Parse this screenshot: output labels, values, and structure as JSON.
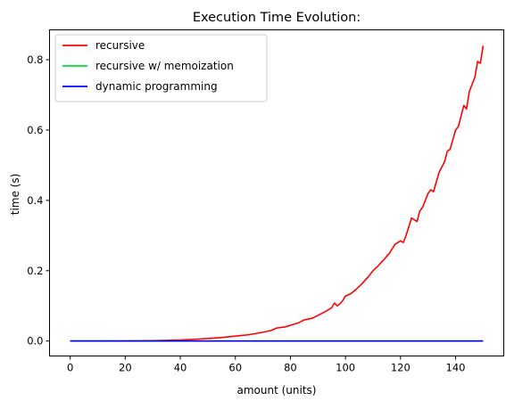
{
  "chart_data": {
    "type": "line",
    "title": "Execution Time Evolution:",
    "xlabel": "amount (units)",
    "ylabel": "time (s)",
    "xlim": [
      -7.5,
      157.5
    ],
    "ylim": [
      -0.0425,
      0.885
    ],
    "x_ticks": [
      0,
      20,
      40,
      60,
      80,
      100,
      120,
      140
    ],
    "x_tick_labels": [
      "0",
      "20",
      "40",
      "60",
      "80",
      "100",
      "120",
      "140"
    ],
    "y_ticks": [
      0.0,
      0.2,
      0.4,
      0.6,
      0.8
    ],
    "y_tick_labels": [
      "0.0",
      "0.2",
      "0.4",
      "0.6",
      "0.8"
    ],
    "grid": false,
    "legend_position": "top-left",
    "series": [
      {
        "name": "recursive",
        "color": "#ff0000",
        "x": [
          0,
          10,
          20,
          30,
          35,
          40,
          45,
          50,
          55,
          60,
          65,
          70,
          73,
          75,
          78,
          80,
          83,
          85,
          88,
          90,
          93,
          95,
          96,
          97,
          98,
          99,
          100,
          102,
          104,
          106,
          108,
          110,
          112,
          114,
          116,
          118,
          120,
          121,
          122,
          124,
          126,
          127,
          128,
          130,
          131,
          132,
          134,
          136,
          137,
          138,
          140,
          141,
          142,
          143,
          144,
          145,
          147,
          148,
          149,
          150
        ],
        "values": [
          0.0,
          0.0,
          0.0005,
          0.001,
          0.002,
          0.003,
          0.005,
          0.007,
          0.01,
          0.014,
          0.018,
          0.025,
          0.03,
          0.037,
          0.04,
          0.045,
          0.052,
          0.06,
          0.065,
          0.073,
          0.085,
          0.095,
          0.108,
          0.1,
          0.106,
          0.115,
          0.128,
          0.135,
          0.148,
          0.163,
          0.18,
          0.2,
          0.215,
          0.232,
          0.25,
          0.275,
          0.285,
          0.28,
          0.3,
          0.35,
          0.34,
          0.37,
          0.38,
          0.42,
          0.43,
          0.425,
          0.48,
          0.51,
          0.54,
          0.545,
          0.6,
          0.61,
          0.64,
          0.67,
          0.66,
          0.71,
          0.75,
          0.795,
          0.79,
          0.84
        ]
      },
      {
        "name": "recursive w/ memoization",
        "color": "#00dd33",
        "x": [
          0,
          150
        ],
        "values": [
          0.0,
          0.0
        ]
      },
      {
        "name": "dynamic programming",
        "color": "#0000ff",
        "x": [
          0,
          150
        ],
        "values": [
          0.0,
          0.0
        ]
      }
    ]
  }
}
